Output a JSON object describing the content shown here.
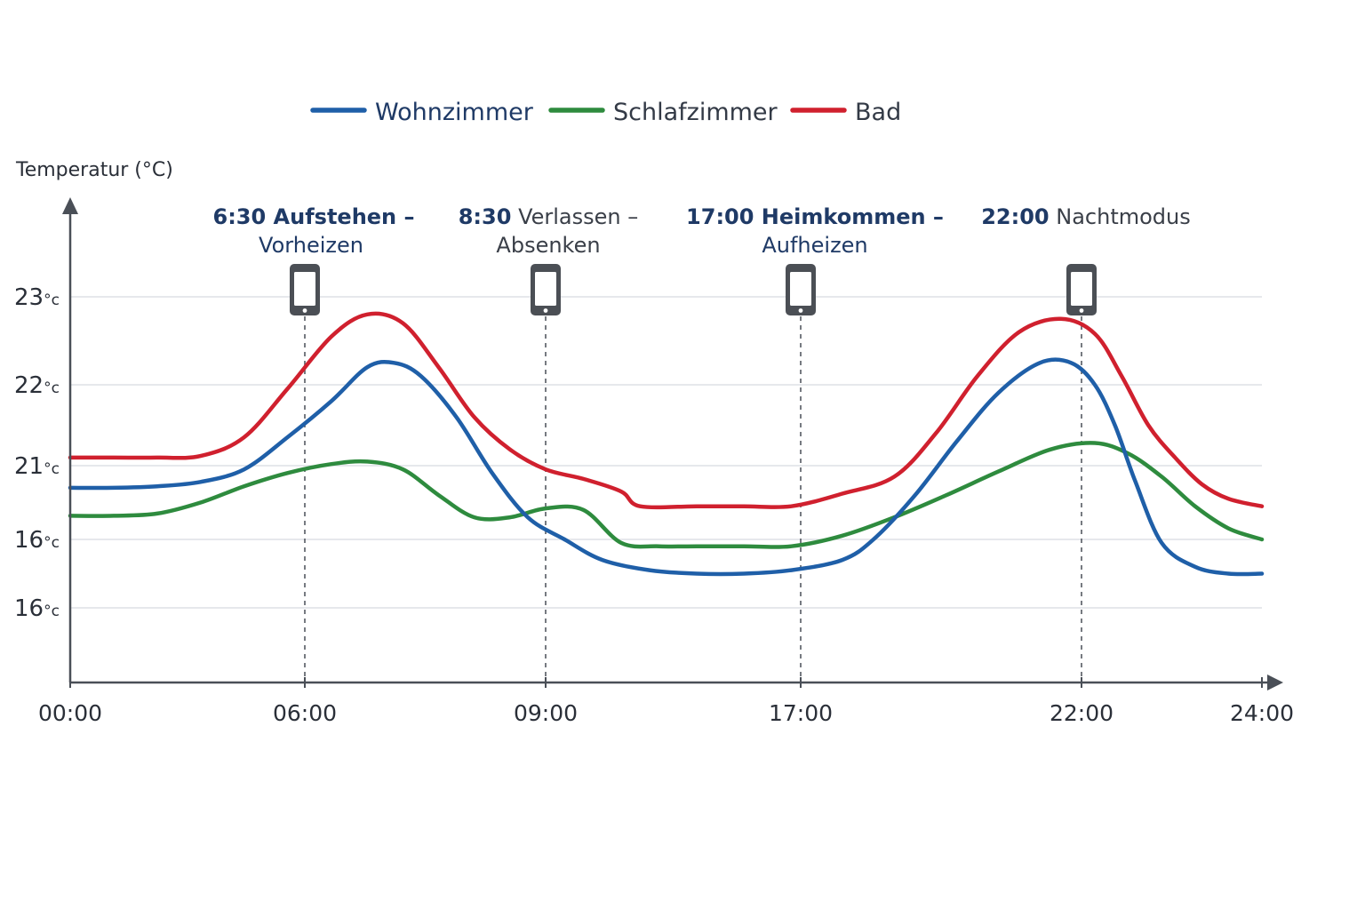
{
  "chart_data": {
    "type": "line",
    "ylabel": "Temperatur (°C)",
    "y_ticks": [
      {
        "value": "23",
        "unit": "°c"
      },
      {
        "value": "22",
        "unit": "°c"
      },
      {
        "value": "21",
        "unit": "°c"
      },
      {
        "value": "16",
        "unit": "°c"
      },
      {
        "value": "16",
        "unit": "°c"
      }
    ],
    "x_ticks": [
      "00:00",
      "06:00",
      "09:00",
      "17:00",
      "22:00",
      "24:00"
    ],
    "legend_placement": "top-center",
    "grid": true,
    "series": [
      {
        "name": "Wohnzimmer",
        "color": "#1f5fa8",
        "points": [
          [
            0.0,
            20.7
          ],
          [
            0.5,
            20.7
          ],
          [
            1.0,
            20.72
          ],
          [
            1.5,
            20.78
          ],
          [
            2.0,
            20.95
          ],
          [
            2.5,
            21.35
          ],
          [
            3.0,
            21.8
          ],
          [
            3.4,
            22.2
          ],
          [
            3.7,
            22.25
          ],
          [
            4.0,
            22.1
          ],
          [
            4.4,
            21.6
          ],
          [
            4.8,
            20.9
          ],
          [
            5.2,
            20.3
          ],
          [
            5.6,
            20.0
          ],
          [
            6.0,
            19.7
          ],
          [
            6.5,
            19.55
          ],
          [
            7.0,
            19.5
          ],
          [
            7.5,
            19.5
          ],
          [
            8.0,
            19.55
          ],
          [
            8.5,
            19.7
          ],
          [
            8.8,
            20.0
          ],
          [
            9.2,
            20.6
          ],
          [
            9.6,
            21.3
          ],
          [
            10.0,
            21.9
          ],
          [
            10.4,
            22.25
          ],
          [
            10.7,
            22.25
          ],
          [
            11.0,
            22.0
          ],
          [
            11.3,
            21.5
          ],
          [
            11.6,
            20.8
          ],
          [
            12.0,
            19.95
          ],
          [
            12.5,
            19.6
          ],
          [
            13.0,
            19.5
          ],
          [
            13.5,
            19.5
          ]
        ]
      },
      {
        "name": "Schlafzimmer",
        "color": "#2e8b3e",
        "points": [
          [
            0.0,
            20.32
          ],
          [
            0.5,
            20.32
          ],
          [
            1.0,
            20.35
          ],
          [
            1.5,
            20.5
          ],
          [
            2.0,
            20.72
          ],
          [
            2.5,
            20.9
          ],
          [
            3.0,
            21.02
          ],
          [
            3.4,
            21.05
          ],
          [
            3.8,
            20.95
          ],
          [
            4.2,
            20.6
          ],
          [
            4.6,
            20.3
          ],
          [
            5.0,
            20.3
          ],
          [
            5.4,
            20.42
          ],
          [
            5.8,
            20.4
          ],
          [
            6.2,
            19.95
          ],
          [
            6.6,
            19.9
          ],
          [
            7.0,
            19.9
          ],
          [
            7.5,
            19.9
          ],
          [
            8.0,
            19.9
          ],
          [
            8.5,
            20.05
          ],
          [
            9.0,
            20.3
          ],
          [
            9.5,
            20.6
          ],
          [
            10.0,
            20.92
          ],
          [
            10.5,
            21.2
          ],
          [
            11.0,
            21.28
          ],
          [
            11.5,
            21.15
          ],
          [
            12.0,
            20.85
          ],
          [
            12.5,
            20.45
          ],
          [
            13.0,
            20.15
          ],
          [
            13.5,
            20.0
          ]
        ]
      },
      {
        "name": "Bad",
        "color": "#d0202e",
        "points": [
          [
            0.0,
            21.1
          ],
          [
            0.5,
            21.1
          ],
          [
            1.0,
            21.1
          ],
          [
            1.5,
            21.12
          ],
          [
            2.0,
            21.35
          ],
          [
            2.5,
            21.95
          ],
          [
            3.0,
            22.55
          ],
          [
            3.4,
            22.8
          ],
          [
            3.8,
            22.7
          ],
          [
            4.2,
            22.2
          ],
          [
            4.6,
            21.6
          ],
          [
            5.0,
            21.2
          ],
          [
            5.4,
            20.95
          ],
          [
            5.8,
            20.82
          ],
          [
            6.2,
            20.65
          ],
          [
            6.4,
            20.45
          ],
          [
            7.0,
            20.45
          ],
          [
            7.5,
            20.45
          ],
          [
            8.0,
            20.45
          ],
          [
            8.5,
            20.62
          ],
          [
            9.0,
            20.85
          ],
          [
            9.4,
            21.4
          ],
          [
            9.8,
            22.1
          ],
          [
            10.2,
            22.6
          ],
          [
            10.6,
            22.75
          ],
          [
            11.0,
            22.58
          ],
          [
            11.4,
            22.1
          ],
          [
            11.8,
            21.5
          ],
          [
            12.2,
            21.1
          ],
          [
            12.6,
            20.75
          ],
          [
            13.0,
            20.55
          ],
          [
            13.5,
            20.45
          ]
        ]
      }
    ],
    "annotations": [
      {
        "line1_strong": "6:30 Aufstehen –",
        "line1_weak": "",
        "line2": "Vorheizen",
        "line2_style": "strong"
      },
      {
        "line1_strong": "8:30",
        "line1_weak": " Verlassen –",
        "line2": "Absenken",
        "line2_style": "weak"
      },
      {
        "line1_strong": "17:00 Heimkommen –",
        "line1_weak": "",
        "line2": "Aufheizen",
        "line2_style": "strong"
      },
      {
        "line1_strong": "22:00",
        "line1_weak": " Nachtmodus",
        "line2": "",
        "line2_style": "weak"
      }
    ]
  }
}
